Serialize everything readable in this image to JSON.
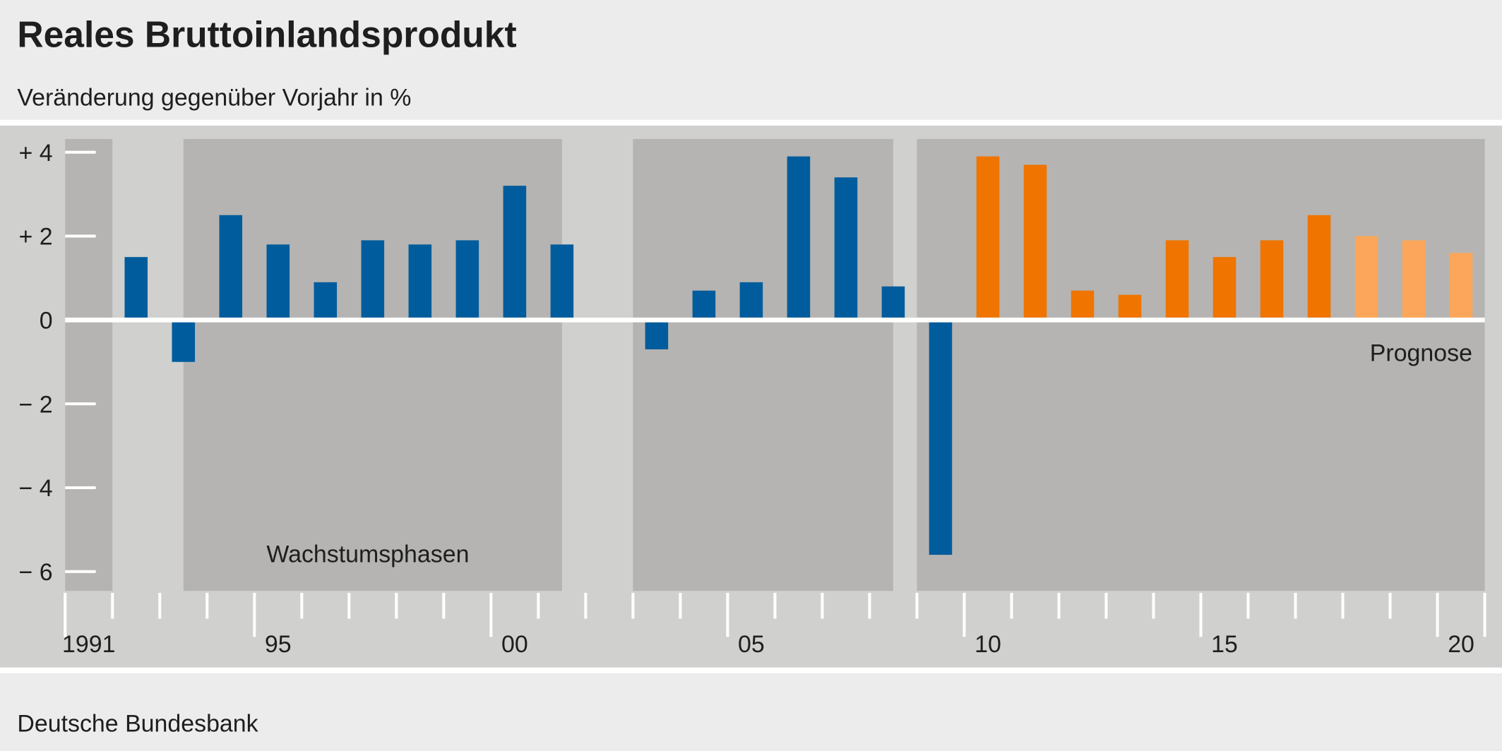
{
  "chart_data": {
    "type": "bar",
    "title": "Reales Bruttoinlandsprodukt",
    "subtitle": "Veränderung gegenüber Vorjahr in %",
    "source": "Deutsche Bundesbank",
    "xlabel": "",
    "ylabel": "",
    "ylim": [
      -6.5,
      4.4
    ],
    "y_ticks": [
      4,
      2,
      0,
      -2,
      -4,
      -6
    ],
    "y_tick_labels": [
      "+ 4",
      "+ 2",
      "0",
      "− 2",
      "− 4",
      "− 6"
    ],
    "x_tick_labels": [
      {
        "year": 1991,
        "label": "1991"
      },
      {
        "year": 1995,
        "label": "95"
      },
      {
        "year": 2000,
        "label": "00"
      },
      {
        "year": 2005,
        "label": "05"
      },
      {
        "year": 2010,
        "label": "10"
      },
      {
        "year": 2015,
        "label": "15"
      },
      {
        "year": 2020,
        "label": "20"
      }
    ],
    "x_range": [
      1991,
      2020
    ],
    "categories": [
      1991,
      1992,
      1993,
      1994,
      1995,
      1996,
      1997,
      1998,
      1999,
      2000,
      2001,
      2002,
      2003,
      2004,
      2005,
      2006,
      2007,
      2008,
      2009,
      2010,
      2011,
      2012,
      2013,
      2014,
      2015,
      2016,
      2017,
      2018,
      2019,
      2020
    ],
    "values": [
      null,
      1.5,
      -1.0,
      2.5,
      1.8,
      0.9,
      1.9,
      1.8,
      1.9,
      3.2,
      1.8,
      0.0,
      -0.7,
      0.7,
      0.9,
      3.9,
      3.4,
      0.8,
      -5.6,
      3.9,
      3.7,
      0.7,
      0.6,
      1.9,
      1.5,
      1.9,
      2.5,
      2.0,
      1.9,
      1.6
    ],
    "series_kind": [
      "actual",
      "actual",
      "actual",
      "actual",
      "actual",
      "actual",
      "actual",
      "actual",
      "actual",
      "actual",
      "actual",
      "actual",
      "actual",
      "actual",
      "actual",
      "actual",
      "actual",
      "actual",
      "actual",
      "highlight",
      "highlight",
      "highlight",
      "highlight",
      "highlight",
      "highlight",
      "highlight",
      "highlight",
      "forecast",
      "forecast",
      "forecast"
    ],
    "growth_phases": [
      {
        "from": 1991,
        "to": 1991
      },
      {
        "from": 1993.5,
        "to": 2000.5
      },
      {
        "from": 2003,
        "to": 2007.5
      },
      {
        "from": 2009,
        "to": 2020.5
      }
    ],
    "annotations": {
      "growth_phases_label": "Wachstumsphasen",
      "forecast_label": "Prognose"
    },
    "colors": {
      "actual": "#005c9c",
      "highlight": "#ef7400",
      "forecast": "#fba65a",
      "phase": "#b5b4b2",
      "panel": "#d0d0ce",
      "background": "#ececec"
    },
    "grid": false,
    "legend": "none"
  }
}
